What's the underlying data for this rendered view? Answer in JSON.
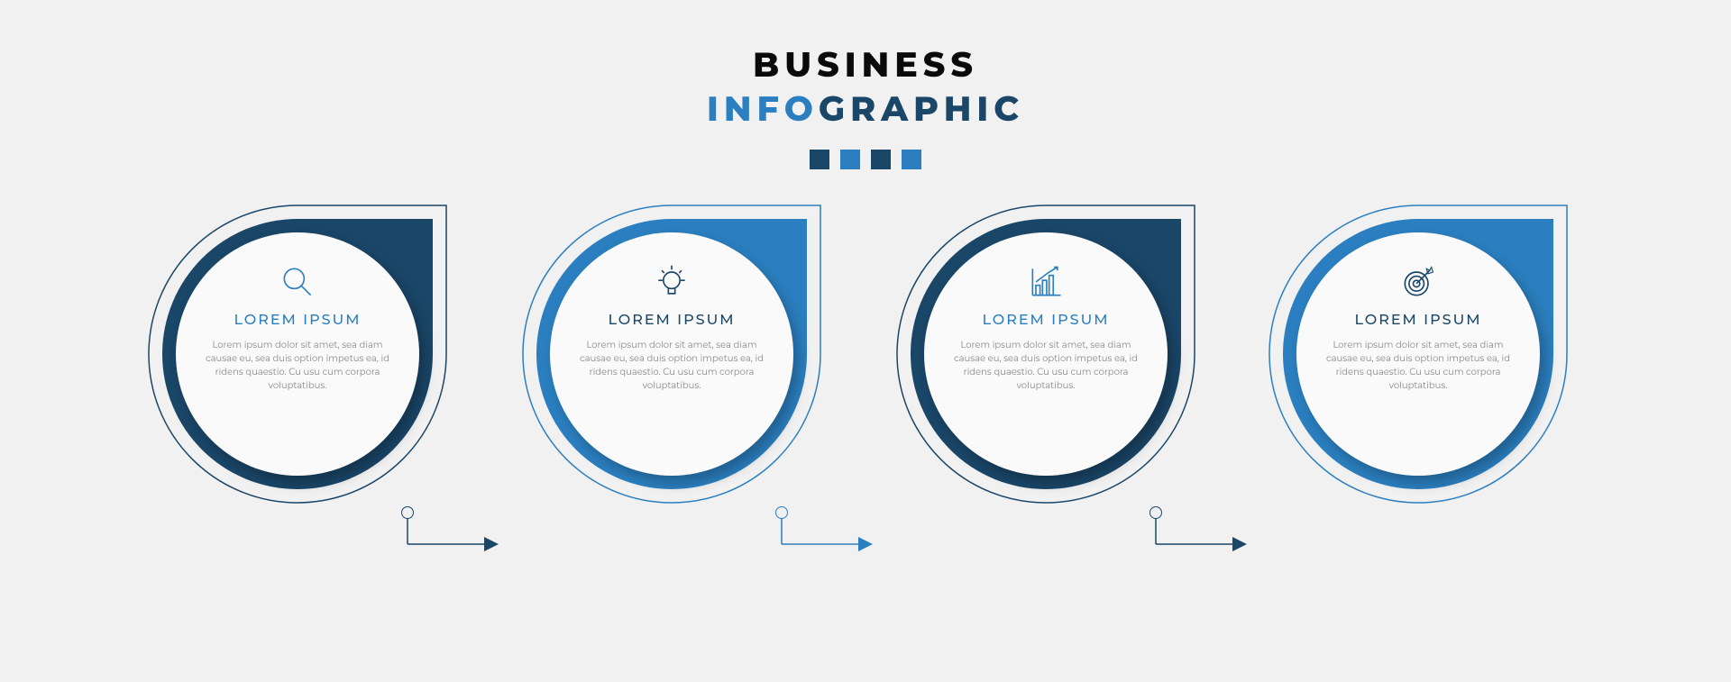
{
  "background_color": "#f1f1f1",
  "header": {
    "line1": "BUSINESS",
    "line2_part1": "INFO",
    "line2_part2": "GRAPHIC",
    "line1_color": "#0a0a0a",
    "line2_part1_color": "#2b7fc0",
    "line2_part2_color": "#1a4668",
    "font_size": 38,
    "letter_spacing": 6,
    "squares": [
      {
        "color": "#1a4668",
        "size": 22
      },
      {
        "color": "#2b7fc0",
        "size": 22
      },
      {
        "color": "#1a4668",
        "size": 22
      },
      {
        "color": "#2b7fc0",
        "size": 22
      }
    ]
  },
  "inner_circle_bg": "#fafafa",
  "body_text_color": "#888888",
  "body_font_size": 10,
  "heading_font_size": 16,
  "steps": [
    {
      "heading": "LOREM IPSUM",
      "body": "Lorem ipsum dolor sit amet, sea diam causae eu, sea duis option impetus ea, id ridens quaestio. Cu usu cum corpora voluptatibus.",
      "icon": "magnifier",
      "accent_color": "#1a4668",
      "heading_color": "#2b7fc0",
      "icon_color": "#2b7fc0"
    },
    {
      "heading": "LOREM IPSUM",
      "body": "Lorem ipsum dolor sit amet, sea diam causae eu, sea duis option impetus ea, id ridens quaestio. Cu usu cum corpora voluptatibus.",
      "icon": "bulb",
      "accent_color": "#2b7fc0",
      "heading_color": "#1a4668",
      "icon_color": "#1a4668"
    },
    {
      "heading": "LOREM IPSUM",
      "body": "Lorem ipsum dolor sit amet, sea diam causae eu, sea duis option impetus ea, id ridens quaestio. Cu usu cum corpora voluptatibus.",
      "icon": "chart",
      "accent_color": "#1a4668",
      "heading_color": "#2b7fc0",
      "icon_color": "#2b7fc0"
    },
    {
      "heading": "LOREM IPSUM",
      "body": "Lorem ipsum dolor sit amet, sea diam causae eu, sea duis option impetus ea, id ridens quaestio. Cu usu cum corpora voluptatibus.",
      "icon": "target",
      "accent_color": "#2b7fc0",
      "heading_color": "#1a4668",
      "icon_color": "#1a4668"
    }
  ]
}
